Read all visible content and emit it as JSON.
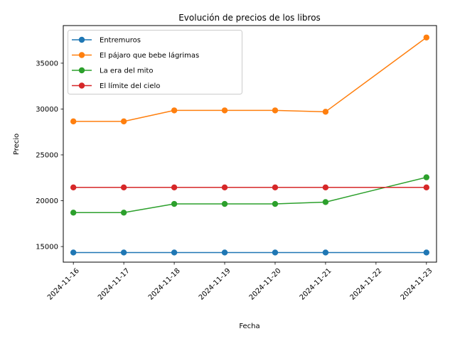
{
  "chart_data": {
    "type": "line",
    "title": "Evolución de precios de los libros",
    "xlabel": "Fecha",
    "ylabel": "Precio",
    "x": [
      "2024-11-16",
      "2024-11-17",
      "2024-11-18",
      "2024-11-19",
      "2024-11-20",
      "2024-11-21",
      "2024-11-23"
    ],
    "xticks": [
      "2024-11-16",
      "2024-11-17",
      "2024-11-18",
      "2024-11-19",
      "2024-11-20",
      "2024-11-21",
      "2024-11-22",
      "2024-11-23"
    ],
    "yticks": [
      15000,
      20000,
      25000,
      30000,
      35000
    ],
    "ylim": [
      13300,
      39100
    ],
    "xlim": [
      "2024-11-15T19:12",
      "2024-11-23T04:48"
    ],
    "grid": false,
    "legend_position": "upper-left",
    "series": [
      {
        "name": "Entremuros",
        "color": "#1f77b4",
        "values": [
          14350,
          14350,
          14350,
          14350,
          14350,
          14350,
          14350
        ]
      },
      {
        "name": "El pájaro que bebe lágrimas",
        "color": "#ff7f0e",
        "values": [
          28650,
          28650,
          29850,
          29850,
          29850,
          29700,
          37800
        ]
      },
      {
        "name": "La era del mito",
        "color": "#2ca02c",
        "values": [
          18700,
          18700,
          19650,
          19650,
          19650,
          19850,
          22550
        ]
      },
      {
        "name": "El límite del cielo",
        "color": "#d62728",
        "values": [
          21450,
          21450,
          21450,
          21450,
          21450,
          21450,
          21450
        ]
      }
    ]
  }
}
